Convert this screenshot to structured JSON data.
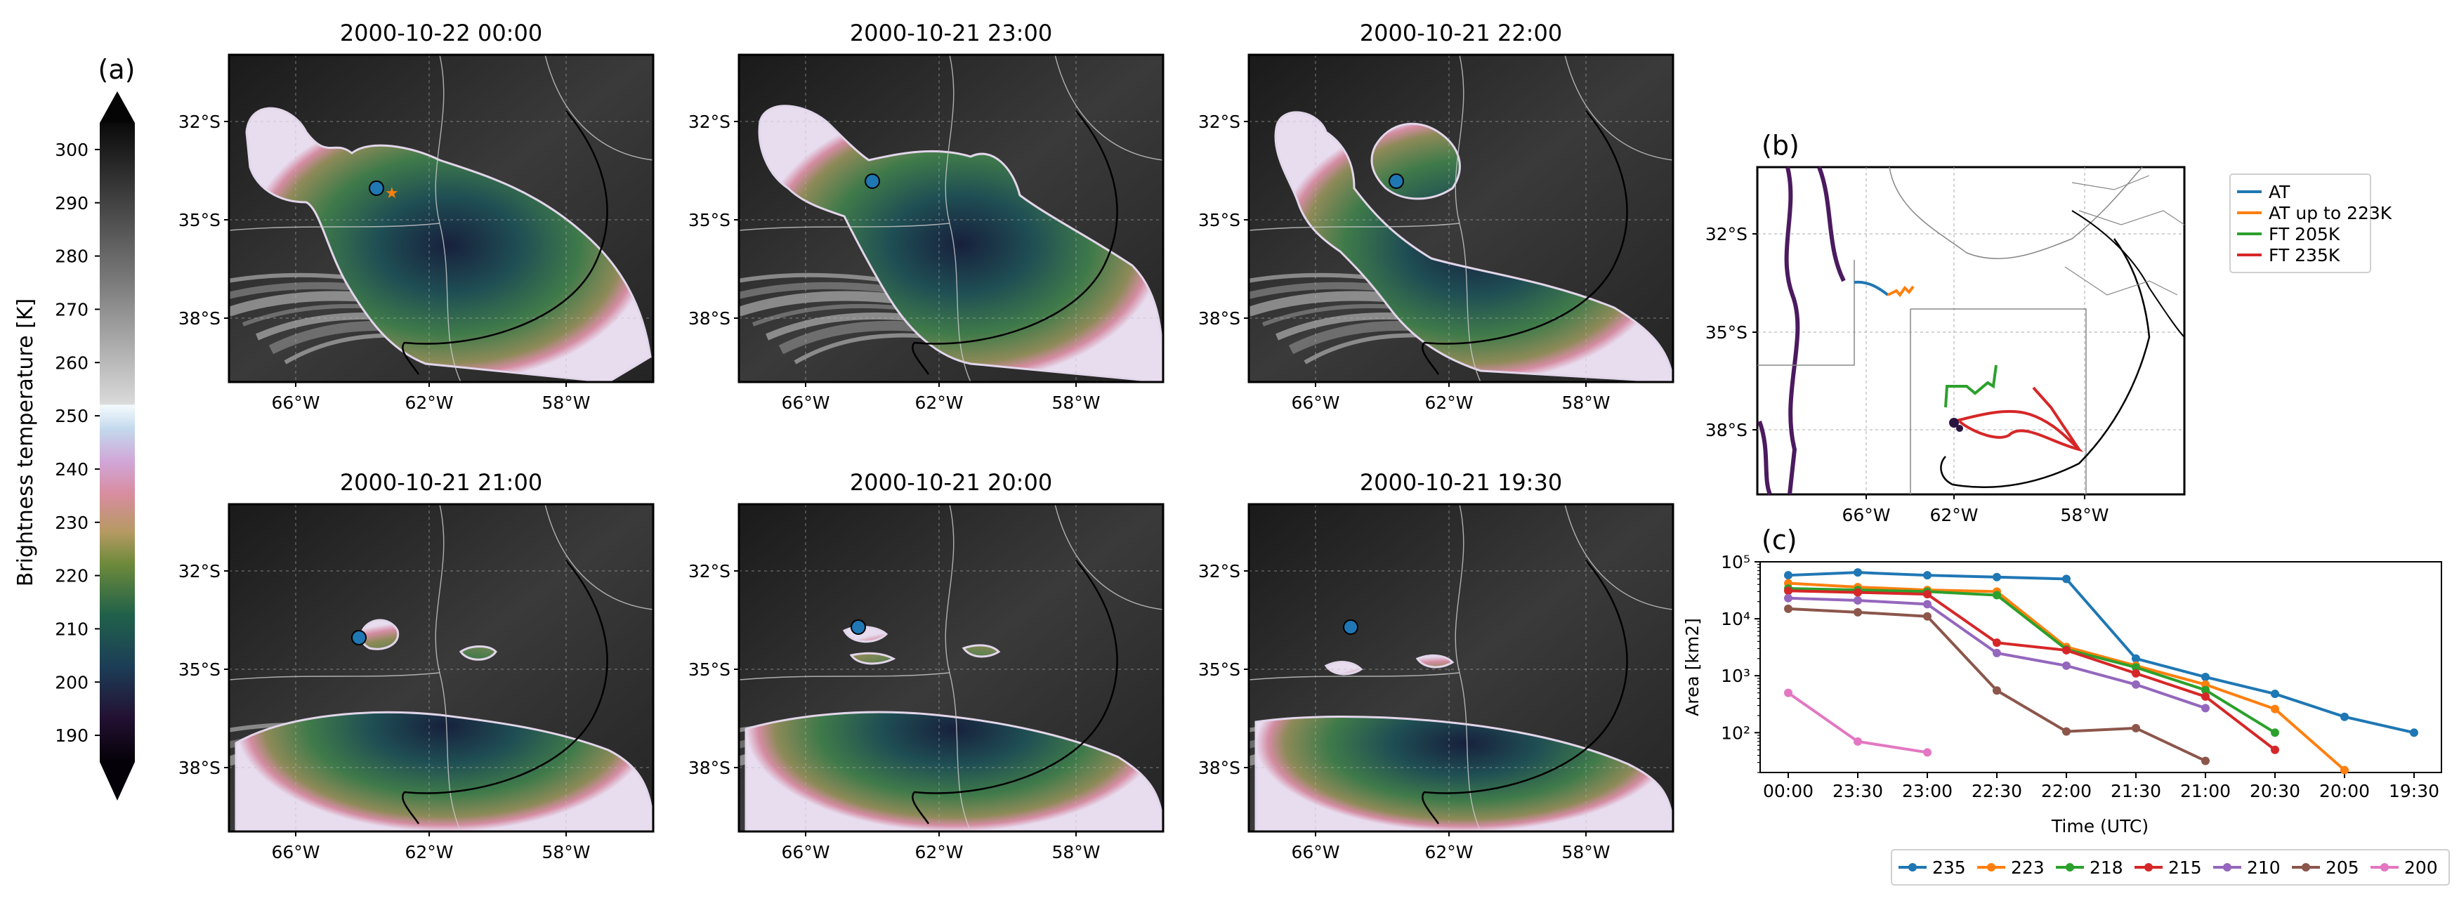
{
  "colorbar": {
    "letter": "(a)",
    "label": "Brightness temperature [K]",
    "ticks": [
      "190",
      "200",
      "210",
      "220",
      "230",
      "240",
      "250",
      "260",
      "270",
      "280",
      "290",
      "300"
    ],
    "range": [
      185,
      305
    ]
  },
  "maps": [
    {
      "title": "2000-10-22 00:00"
    },
    {
      "title": "2000-10-21 23:00"
    },
    {
      "title": "2000-10-21 22:00"
    },
    {
      "title": "2000-10-21 21:00"
    },
    {
      "title": "2000-10-21 20:00"
    },
    {
      "title": "2000-10-21 19:30"
    }
  ],
  "map_axes": {
    "lat_ticks": [
      "32°S",
      "35°S",
      "38°S"
    ],
    "lon_ticks": [
      "66°W",
      "62°W",
      "58°W"
    ]
  },
  "panel_b": {
    "letter": "(b)",
    "lat_ticks": [
      "32°S",
      "35°S",
      "38°S"
    ],
    "lon_ticks": [
      "66°W",
      "62°W",
      "58°W"
    ],
    "legend": [
      {
        "label": "AT",
        "color": "#1f77b4"
      },
      {
        "label": "AT up to 223K",
        "color": "#ff7f0e"
      },
      {
        "label": "FT 205K",
        "color": "#2ca02c"
      },
      {
        "label": "FT 235K",
        "color": "#d62728"
      }
    ]
  },
  "panel_c": {
    "letter": "(c)",
    "xlabel": "Time (UTC)",
    "ylabel": "Area [km2]",
    "ytick_labels": [
      "10²",
      "10³",
      "10⁴",
      "10⁵"
    ]
  },
  "chart_data": {
    "type": "line",
    "title": "",
    "xlabel": "Time (UTC)",
    "ylabel": "Area [km2]",
    "yscale": "log",
    "ylim": [
      20,
      100000
    ],
    "categories": [
      "00:00",
      "23:30",
      "23:00",
      "22:30",
      "22:00",
      "21:30",
      "21:00",
      "20:30",
      "20:00",
      "19:30"
    ],
    "series": [
      {
        "name": "235",
        "color": "#1f77b4",
        "values": [
          58000,
          65000,
          58000,
          54000,
          50000,
          2000,
          950,
          480,
          190,
          100
        ]
      },
      {
        "name": "223",
        "color": "#ff7f0e",
        "values": [
          42000,
          36000,
          32000,
          30000,
          3200,
          1500,
          700,
          260,
          22,
          null
        ]
      },
      {
        "name": "218",
        "color": "#2ca02c",
        "values": [
          34000,
          32000,
          30000,
          26000,
          2900,
          1400,
          560,
          100,
          null,
          null
        ]
      },
      {
        "name": "215",
        "color": "#d62728",
        "values": [
          31000,
          29000,
          27000,
          3800,
          2800,
          1100,
          430,
          50,
          null,
          null
        ]
      },
      {
        "name": "210",
        "color": "#9467bd",
        "values": [
          23000,
          21000,
          18000,
          2500,
          1500,
          700,
          270,
          null,
          null,
          null
        ]
      },
      {
        "name": "205",
        "color": "#8c564b",
        "values": [
          15000,
          13000,
          11000,
          550,
          105,
          120,
          32,
          null,
          null,
          null
        ]
      },
      {
        "name": "200",
        "color": "#e377c2",
        "values": [
          500,
          70,
          45,
          null,
          null,
          null,
          null,
          null,
          null,
          null
        ]
      }
    ]
  }
}
